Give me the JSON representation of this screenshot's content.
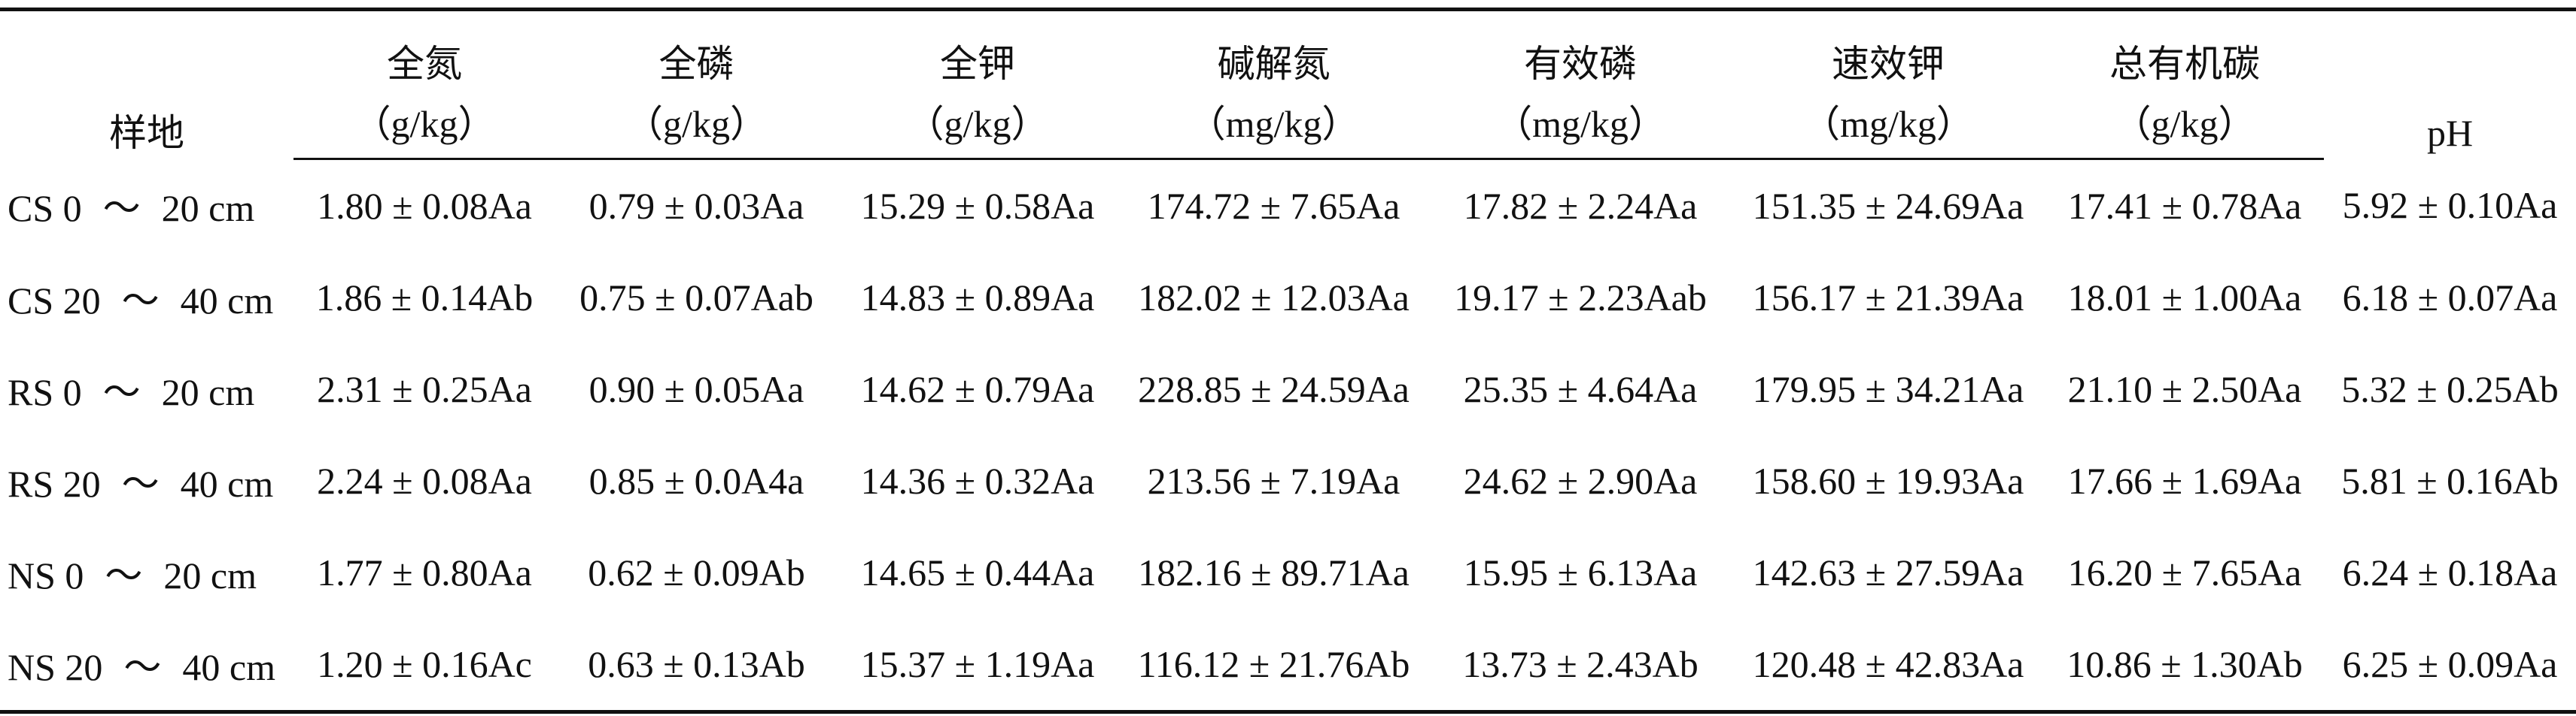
{
  "table": {
    "headers": [
      {
        "label": "样地",
        "unit": ""
      },
      {
        "label": "全氮",
        "unit": "（g/kg）"
      },
      {
        "label": "全磷",
        "unit": "（g/kg）"
      },
      {
        "label": "全钾",
        "unit": "（g/kg）"
      },
      {
        "label": "碱解氮",
        "unit": "（mg/kg）"
      },
      {
        "label": "有效磷",
        "unit": "（mg/kg）"
      },
      {
        "label": "速效钾",
        "unit": "（mg/kg）"
      },
      {
        "label": "总有机碳",
        "unit": "（g/kg）"
      },
      {
        "label": "pH",
        "unit": ""
      }
    ],
    "rows": [
      {
        "site": "CS 0",
        "tilde": "～",
        "depth": "20 cm",
        "values": [
          "1.80 ± 0.08Aa",
          "0.79 ± 0.03Aa",
          "15.29 ± 0.58Aa",
          "174.72 ± 7.65Aa",
          "17.82 ± 2.24Aa",
          "151.35 ± 24.69Aa",
          "17.41 ± 0.78Aa",
          "5.92 ± 0.10Aa"
        ]
      },
      {
        "site": "CS 20",
        "tilde": "～",
        "depth": "40 cm",
        "values": [
          "1.86 ± 0.14Ab",
          "0.75 ± 0.07Aab",
          "14.83 ± 0.89Aa",
          "182.02 ± 12.03Aa",
          "19.17 ± 2.23Aab",
          "156.17 ± 21.39Aa",
          "18.01 ± 1.00Aa",
          "6.18 ± 0.07Aa"
        ]
      },
      {
        "site": "RS 0",
        "tilde": "～",
        "depth": "20 cm",
        "values": [
          "2.31 ± 0.25Aa",
          "0.90 ± 0.05Aa",
          "14.62 ± 0.79Aa",
          "228.85 ± 24.59Aa",
          "25.35 ± 4.64Aa",
          "179.95 ± 34.21Aa",
          "21.10 ± 2.50Aa",
          "5.32 ± 0.25Ab"
        ]
      },
      {
        "site": "RS 20",
        "tilde": "～",
        "depth": "40 cm",
        "values": [
          "2.24 ± 0.08Aa",
          "0.85 ± 0.0A4a",
          "14.36 ± 0.32Aa",
          "213.56 ± 7.19Aa",
          "24.62 ± 2.90Aa",
          "158.60 ± 19.93Aa",
          "17.66 ± 1.69Aa",
          "5.81 ± 0.16Ab"
        ]
      },
      {
        "site": "NS 0",
        "tilde": "～",
        "depth": "20 cm",
        "values": [
          "1.77 ± 0.80Aa",
          "0.62 ± 0.09Ab",
          "14.65 ± 0.44Aa",
          "182.16 ± 89.71Aa",
          "15.95 ± 6.13Aa",
          "142.63 ± 27.59Aa",
          "16.20 ± 7.65Aa",
          "6.24 ± 0.18Aa"
        ]
      },
      {
        "site": "NS 20",
        "tilde": "～",
        "depth": "40 cm",
        "values": [
          "1.20 ± 0.16Ac",
          "0.63 ± 0.13Ab",
          "15.37 ± 1.19Aa",
          "116.12 ± 21.76Ab",
          "13.73 ± 2.43Ab",
          "120.48 ± 42.83Aa",
          "10.86 ± 1.30Ab",
          "6.25 ± 0.09Aa"
        ]
      }
    ]
  }
}
